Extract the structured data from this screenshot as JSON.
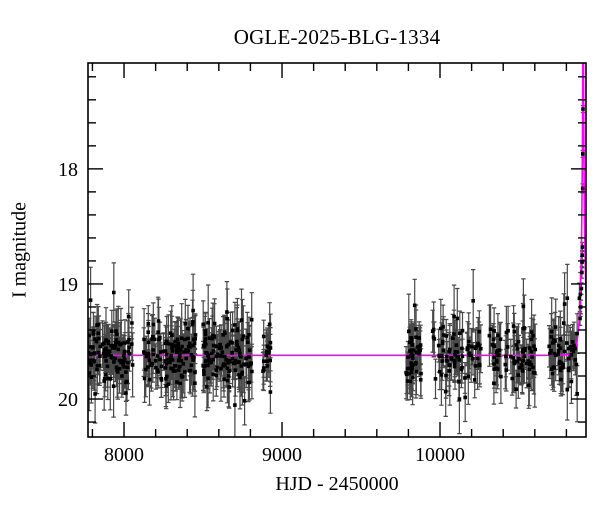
{
  "chart_data": {
    "type": "scatter",
    "title": "OGLE-2025-BLG-1334",
    "xlabel": "HJD - 2450000",
    "ylabel": "I magnitude",
    "x_axis": {
      "min": 7772,
      "max": 10924,
      "major_ticks": [
        8000,
        9000,
        10000
      ],
      "minor_step": 200
    },
    "y_axis": {
      "bright_end": 17.08,
      "faint_end": 20.33,
      "major_ticks": [
        18,
        19,
        20
      ],
      "minor_step": 0.2,
      "inverted": true
    },
    "baseline_mag": 19.62,
    "model": {
      "type": "point-lens-magnification",
      "t0": 10906,
      "tE": 25,
      "u0": 0.008,
      "color": "#ff00ff"
    },
    "style": {
      "background": "#ffffff",
      "frame_color": "#000000",
      "point_color": "#000000",
      "errorbar_color": "#484848",
      "text_color": "#000000"
    },
    "noise": {
      "err_base": 0.13,
      "err_spread": 0.08,
      "err_max": 0.45,
      "scatter_factor": 0.75
    },
    "seasons": [
      {
        "t_start": 7772,
        "t_end": 8057,
        "n": 110
      },
      {
        "t_start": 8120,
        "t_end": 8456,
        "n": 130
      },
      {
        "t_start": 8500,
        "t_end": 8810,
        "n": 130
      },
      {
        "t_start": 8873,
        "t_end": 8937,
        "n": 18
      },
      {
        "t_start": 9785,
        "t_end": 9880,
        "n": 50
      },
      {
        "t_start": 9949,
        "t_end": 10259,
        "n": 80
      },
      {
        "t_start": 10310,
        "t_end": 10620,
        "n": 80
      },
      {
        "t_start": 10690,
        "t_end": 10892,
        "n": 55
      }
    ],
    "rise_points": [
      {
        "t": 10886,
        "mag": 19.3,
        "err": 0.06
      },
      {
        "t": 10891,
        "mag": 19.2,
        "err": 0.06
      },
      {
        "t": 10895,
        "mag": 19.04,
        "err": 0.05
      },
      {
        "t": 10898,
        "mag": 18.9,
        "err": 0.05
      },
      {
        "t": 10899,
        "mag": 18.81,
        "err": 0.05
      },
      {
        "t": 10900,
        "mag": 18.75,
        "err": 0.04
      },
      {
        "t": 10901,
        "mag": 18.68,
        "err": 0.04
      },
      {
        "t": 10903,
        "mag": 18.17,
        "err": 0.04
      },
      {
        "t": 10904,
        "mag": 17.87,
        "err": 0.03
      },
      {
        "t": 10905,
        "mag": 17.48,
        "err": 0.03
      }
    ]
  }
}
